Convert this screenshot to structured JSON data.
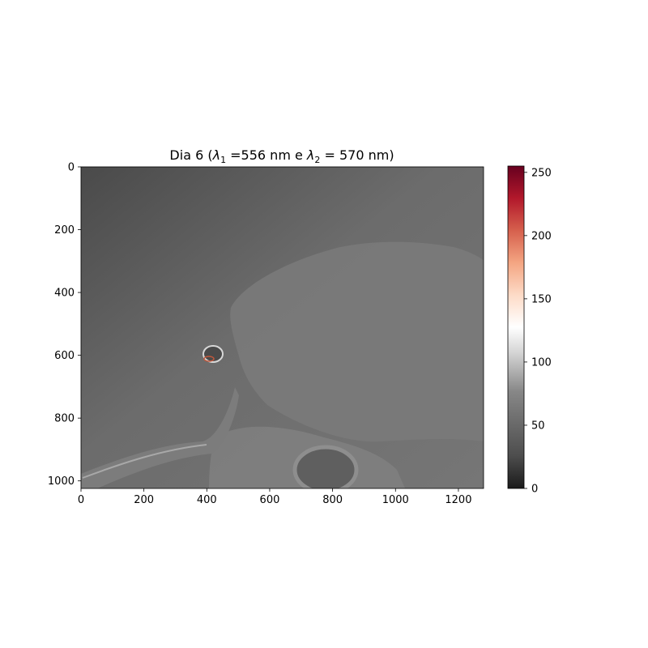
{
  "chart_data": {
    "type": "heatmap",
    "title_prefix": "Dia 6 (",
    "title_lambda1_sub": "1",
    "title_mid": " =556 nm e ",
    "title_lambda2_sub": "2",
    "title_suffix": " = 570 nm)",
    "title_lambda_symbol": "λ",
    "xlabel": "",
    "ylabel": "",
    "image_width": 1280,
    "image_height": 1024,
    "xlim": [
      0,
      1280
    ],
    "ylim": [
      1024,
      0
    ],
    "xticks": [
      {
        "value": 0,
        "label": "0"
      },
      {
        "value": 200,
        "label": "200"
      },
      {
        "value": 400,
        "label": "400"
      },
      {
        "value": 600,
        "label": "600"
      },
      {
        "value": 800,
        "label": "800"
      },
      {
        "value": 1000,
        "label": "1000"
      },
      {
        "value": 1200,
        "label": "1200"
      }
    ],
    "yticks": [
      {
        "value": 0,
        "label": "0"
      },
      {
        "value": 200,
        "label": "200"
      },
      {
        "value": 400,
        "label": "400"
      },
      {
        "value": 600,
        "label": "600"
      },
      {
        "value": 800,
        "label": "800"
      },
      {
        "value": 1000,
        "label": "1000"
      }
    ],
    "colorbar": {
      "colormap": "RdGy_r",
      "range": [
        0,
        255
      ],
      "ticks": [
        {
          "value": 0,
          "label": "0"
        },
        {
          "value": 50,
          "label": "50"
        },
        {
          "value": 100,
          "label": "100"
        },
        {
          "value": 150,
          "label": "150"
        },
        {
          "value": 200,
          "label": "200"
        },
        {
          "value": 250,
          "label": "250"
        }
      ],
      "stops": [
        {
          "value": 0,
          "color": "#1a1a1a"
        },
        {
          "value": 0.1,
          "color": "#4d4d4d"
        },
        {
          "value": 0.3,
          "color": "#878787"
        },
        {
          "value": 0.42,
          "color": "#d4d4d4"
        },
        {
          "value": 0.5,
          "color": "#ffffff"
        },
        {
          "value": 0.6,
          "color": "#fddbc7"
        },
        {
          "value": 0.7,
          "color": "#f4a582"
        },
        {
          "value": 0.8,
          "color": "#d6604d"
        },
        {
          "value": 0.9,
          "color": "#b2182b"
        },
        {
          "value": 1,
          "color": "#67001f"
        }
      ]
    },
    "background_intensity": 55
  }
}
